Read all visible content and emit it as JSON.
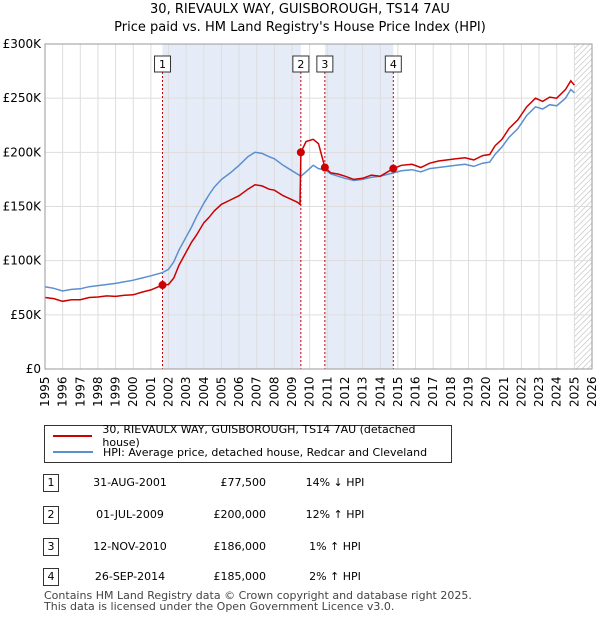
{
  "title_line1": "30, RIEVAULX WAY, GUISBOROUGH, TS14 7AU",
  "title_line2": "Price paid vs. HM Land Registry's House Price Index (HPI)",
  "chart_data": {
    "type": "line",
    "title": "30, RIEVAULX WAY, GUISBOROUGH, TS14 7AU",
    "subtitle": "Price paid vs. HM Land Registry's House Price Index (HPI)",
    "xlim": [
      1995,
      2026
    ],
    "ylim": [
      0,
      300000
    ],
    "x_ticks": [
      "1995",
      "1996",
      "1997",
      "1998",
      "1999",
      "2000",
      "2001",
      "2002",
      "2003",
      "2004",
      "2005",
      "2006",
      "2007",
      "2008",
      "2009",
      "2010",
      "2011",
      "2012",
      "2013",
      "2014",
      "2015",
      "2016",
      "2017",
      "2018",
      "2019",
      "2020",
      "2021",
      "2022",
      "2023",
      "2024",
      "2025",
      "2026"
    ],
    "y_ticks": [
      {
        "value": 0,
        "label": "£0"
      },
      {
        "value": 50000,
        "label": "£50K"
      },
      {
        "value": 100000,
        "label": "£100K"
      },
      {
        "value": 150000,
        "label": "£150K"
      },
      {
        "value": 200000,
        "label": "£200K"
      },
      {
        "value": 250000,
        "label": "£250K"
      },
      {
        "value": 300000,
        "label": "£300K"
      }
    ],
    "grid": true,
    "shaded_periods": [
      [
        2001.66,
        2009.5
      ],
      [
        2010.86,
        2014.74
      ]
    ],
    "future_hatch_from": 2025.0,
    "series": [
      {
        "name": "30, RIEVAULX WAY, GUISBOROUGH, TS14 7AU (detached house)",
        "color": "#cc0000",
        "points": [
          [
            1995.0,
            66000
          ],
          [
            1995.5,
            65000
          ],
          [
            1996.0,
            62500
          ],
          [
            1996.5,
            64000
          ],
          [
            1997.0,
            64000
          ],
          [
            1997.5,
            66000
          ],
          [
            1998.0,
            66500
          ],
          [
            1998.5,
            67500
          ],
          [
            1999.0,
            67000
          ],
          [
            1999.5,
            68000
          ],
          [
            2000.0,
            68500
          ],
          [
            2000.5,
            71000
          ],
          [
            2001.0,
            73000
          ],
          [
            2001.66,
            77500
          ],
          [
            2002.0,
            78000
          ],
          [
            2002.3,
            84000
          ],
          [
            2002.6,
            96000
          ],
          [
            2003.0,
            108000
          ],
          [
            2003.3,
            117000
          ],
          [
            2003.6,
            124000
          ],
          [
            2004.0,
            135000
          ],
          [
            2004.3,
            140000
          ],
          [
            2004.6,
            146000
          ],
          [
            2005.0,
            152000
          ],
          [
            2005.5,
            156000
          ],
          [
            2006.0,
            160000
          ],
          [
            2006.5,
            166000
          ],
          [
            2006.9,
            170000
          ],
          [
            2007.3,
            169000
          ],
          [
            2007.7,
            166000
          ],
          [
            2008.0,
            165000
          ],
          [
            2008.5,
            160000
          ],
          [
            2008.9,
            157000
          ],
          [
            2009.3,
            154000
          ],
          [
            2009.45,
            152000
          ],
          [
            2009.5,
            200000
          ],
          [
            2009.8,
            210000
          ],
          [
            2010.2,
            212000
          ],
          [
            2010.5,
            208000
          ],
          [
            2010.86,
            186000
          ],
          [
            2011.2,
            181000
          ],
          [
            2011.6,
            180000
          ],
          [
            2012.0,
            178000
          ],
          [
            2012.5,
            175000
          ],
          [
            2013.0,
            176000
          ],
          [
            2013.5,
            179000
          ],
          [
            2014.0,
            178000
          ],
          [
            2014.74,
            185000
          ],
          [
            2015.2,
            188000
          ],
          [
            2015.8,
            189000
          ],
          [
            2016.3,
            186000
          ],
          [
            2016.8,
            190000
          ],
          [
            2017.3,
            192000
          ],
          [
            2017.8,
            193000
          ],
          [
            2018.3,
            194000
          ],
          [
            2018.8,
            195000
          ],
          [
            2019.3,
            193000
          ],
          [
            2019.8,
            197000
          ],
          [
            2020.2,
            198000
          ],
          [
            2020.5,
            206000
          ],
          [
            2020.9,
            212000
          ],
          [
            2021.3,
            222000
          ],
          [
            2021.8,
            230000
          ],
          [
            2022.3,
            242000
          ],
          [
            2022.8,
            250000
          ],
          [
            2023.2,
            247000
          ],
          [
            2023.6,
            251000
          ],
          [
            2024.0,
            250000
          ],
          [
            2024.5,
            258000
          ],
          [
            2024.8,
            266000
          ],
          [
            2025.0,
            262000
          ]
        ]
      },
      {
        "name": "HPI: Average price, detached house, Redcar and Cleveland",
        "color": "#5b8fd0",
        "points": [
          [
            1995.0,
            76000
          ],
          [
            1995.5,
            74500
          ],
          [
            1996.0,
            72000
          ],
          [
            1996.5,
            73500
          ],
          [
            1997.0,
            74000
          ],
          [
            1997.5,
            76000
          ],
          [
            1998.0,
            77000
          ],
          [
            1998.5,
            78000
          ],
          [
            1999.0,
            79000
          ],
          [
            1999.5,
            80500
          ],
          [
            2000.0,
            82000
          ],
          [
            2000.5,
            84000
          ],
          [
            2001.0,
            86000
          ],
          [
            2001.66,
            89000
          ],
          [
            2002.0,
            92000
          ],
          [
            2002.3,
            99000
          ],
          [
            2002.6,
            110000
          ],
          [
            2003.0,
            122000
          ],
          [
            2003.3,
            131000
          ],
          [
            2003.6,
            141000
          ],
          [
            2004.0,
            153000
          ],
          [
            2004.3,
            161000
          ],
          [
            2004.6,
            168000
          ],
          [
            2005.0,
            175000
          ],
          [
            2005.5,
            181000
          ],
          [
            2006.0,
            188000
          ],
          [
            2006.5,
            196000
          ],
          [
            2006.9,
            200000
          ],
          [
            2007.3,
            199000
          ],
          [
            2007.7,
            196000
          ],
          [
            2008.0,
            194000
          ],
          [
            2008.5,
            188000
          ],
          [
            2008.9,
            184000
          ],
          [
            2009.3,
            180000
          ],
          [
            2009.5,
            178000
          ],
          [
            2009.8,
            182000
          ],
          [
            2010.2,
            188000
          ],
          [
            2010.5,
            185000
          ],
          [
            2010.86,
            184000
          ],
          [
            2011.2,
            180000
          ],
          [
            2011.6,
            178000
          ],
          [
            2012.0,
            176000
          ],
          [
            2012.5,
            174000
          ],
          [
            2013.0,
            175000
          ],
          [
            2013.5,
            177000
          ],
          [
            2014.0,
            178000
          ],
          [
            2014.74,
            181000
          ],
          [
            2015.2,
            183000
          ],
          [
            2015.8,
            184000
          ],
          [
            2016.3,
            182000
          ],
          [
            2016.8,
            185000
          ],
          [
            2017.3,
            186000
          ],
          [
            2017.8,
            187000
          ],
          [
            2018.3,
            188000
          ],
          [
            2018.8,
            189000
          ],
          [
            2019.3,
            187000
          ],
          [
            2019.8,
            190000
          ],
          [
            2020.2,
            191000
          ],
          [
            2020.5,
            198000
          ],
          [
            2020.9,
            205000
          ],
          [
            2021.3,
            214000
          ],
          [
            2021.8,
            222000
          ],
          [
            2022.3,
            234000
          ],
          [
            2022.8,
            242000
          ],
          [
            2023.2,
            240000
          ],
          [
            2023.6,
            244000
          ],
          [
            2024.0,
            243000
          ],
          [
            2024.5,
            250000
          ],
          [
            2024.8,
            258000
          ],
          [
            2025.0,
            255000
          ]
        ]
      }
    ],
    "sales": [
      {
        "label": "1",
        "x": 2001.66,
        "price": 77500
      },
      {
        "label": "2",
        "x": 2009.5,
        "price": 200000
      },
      {
        "label": "3",
        "x": 2010.86,
        "price": 186000
      },
      {
        "label": "4",
        "x": 2014.74,
        "price": 185000
      }
    ]
  },
  "legend": {
    "property": "30, RIEVAULX WAY, GUISBOROUGH, TS14 7AU (detached house)",
    "hpi": "HPI: Average price, detached house, Redcar and Cleveland"
  },
  "sales_table": [
    {
      "num": "1",
      "date": "31-AUG-2001",
      "price": "£77,500",
      "hpi": "14% ↓ HPI"
    },
    {
      "num": "2",
      "date": "01-JUL-2009",
      "price": "£200,000",
      "hpi": "12% ↑ HPI"
    },
    {
      "num": "3",
      "date": "12-NOV-2010",
      "price": "£186,000",
      "hpi": "1% ↑ HPI"
    },
    {
      "num": "4",
      "date": "26-SEP-2014",
      "price": "£185,000",
      "hpi": "2% ↑ HPI"
    }
  ],
  "footer_line1": "Contains HM Land Registry data © Crown copyright and database right 2025.",
  "footer_line2": "This data is licensed under the Open Government Licence v3.0.",
  "colors": {
    "property": "#cc0000",
    "hpi": "#5b8fd0",
    "shade": "#e6ecf7"
  }
}
